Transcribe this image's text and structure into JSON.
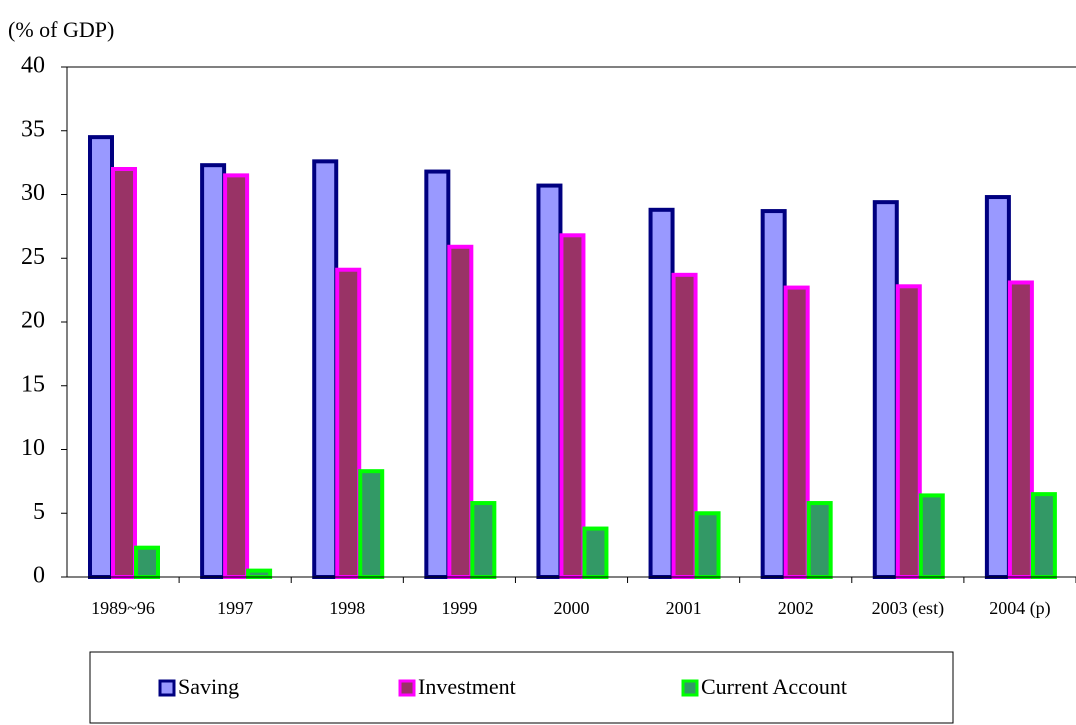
{
  "chart_data": {
    "type": "bar",
    "y_label": "(% of GDP)",
    "categories": [
      "1989~96",
      "1997",
      "1998",
      "1999",
      "2000",
      "2001",
      "2002",
      "2003 (est)",
      "2004 (p)"
    ],
    "series": [
      {
        "name": "Saving",
        "color": "#9999ff",
        "edgecolor": "#000080",
        "values": [
          34.5,
          32.3,
          32.6,
          31.8,
          30.7,
          28.8,
          28.7,
          29.4,
          29.8
        ]
      },
      {
        "name": "Investment",
        "color": "#993366",
        "edgecolor": "#ff00ff",
        "values": [
          32.0,
          31.5,
          24.1,
          25.9,
          26.8,
          23.7,
          22.7,
          22.8,
          23.1
        ]
      },
      {
        "name": "Current Account",
        "color": "#339966",
        "edgecolor": "#00ff00",
        "values": [
          2.3,
          0.5,
          8.3,
          5.8,
          3.8,
          5.0,
          5.8,
          6.4,
          6.5
        ]
      }
    ],
    "ylim": [
      0,
      40
    ],
    "yticks": [
      0,
      5,
      10,
      15,
      20,
      25,
      30,
      35,
      40
    ],
    "legend": "bottom"
  }
}
